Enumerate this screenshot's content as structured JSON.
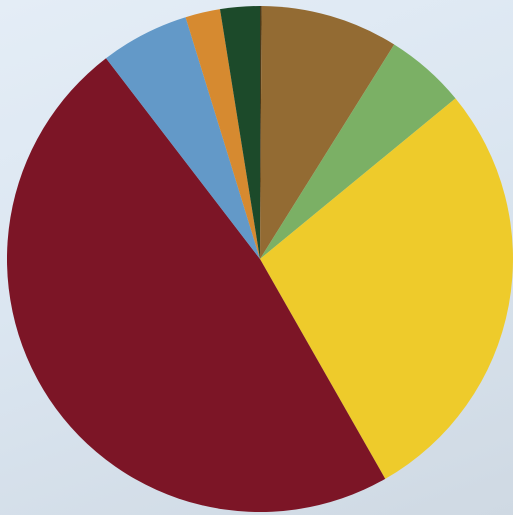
{
  "background": {
    "description_color": "#dde7f1",
    "edge_tint": "#cfd6dc"
  },
  "chart_data": {
    "type": "pie",
    "title": "",
    "start_angle_deg": 0,
    "direction": "clockwise",
    "slices": [
      {
        "value": 0.1,
        "color": "#4a3a1a"
      },
      {
        "value": 8.7,
        "color": "#936b33"
      },
      {
        "value": 5.1,
        "color": "#7bb065"
      },
      {
        "value": 27.4,
        "color": "#eecb2b"
      },
      {
        "value": 47.3,
        "color": "#7c1526"
      },
      {
        "value": 5.6,
        "color": "#6399c8"
      },
      {
        "value": 2.2,
        "color": "#d68a30"
      },
      {
        "value": 2.5,
        "color": "#1c4a2a"
      }
    ]
  }
}
